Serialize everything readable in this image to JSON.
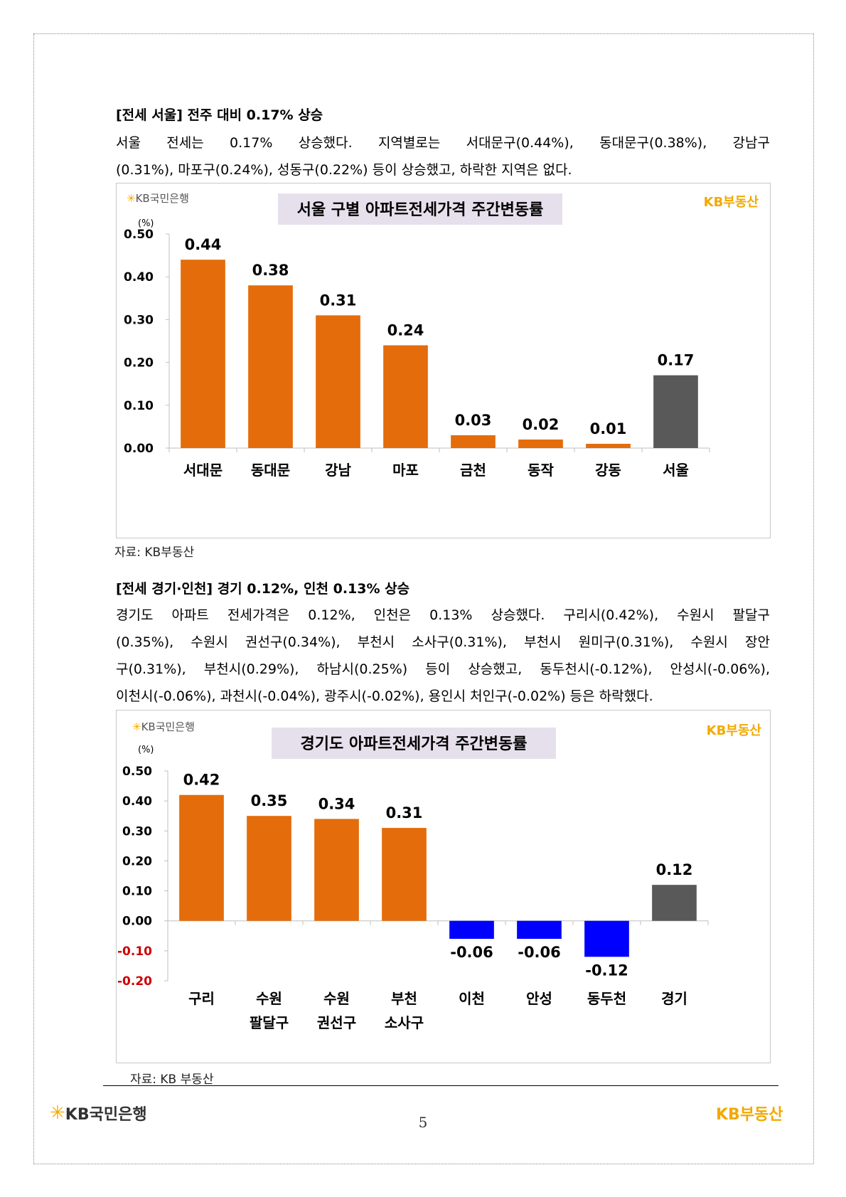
{
  "sections": [
    {
      "heading": "[전세 서울] 전주 대비 0.17% 상승",
      "lines": [
        "서울 전세는 0.17% 상승했다. 지역별로는 서대문구(0.44%), 동대문구(0.38%), 강남구",
        "(0.31%), 마포구(0.24%), 성동구(0.22%) 등이 상승했고, 하락한 지역은 없다."
      ]
    },
    {
      "heading": "[전세 경기·인천] 경기 0.12%, 인천 0.13% 상승",
      "lines": [
        "경기도 아파트 전세가격은 0.12%, 인천은 0.13% 상승했다. 구리시(0.42%), 수원시 팔달구",
        "(0.35%), 수원시 권선구(0.34%), 부천시 소사구(0.31%), 부천시 원미구(0.31%), 수원시 장안",
        "구(0.31%), 부천시(0.29%), 하남시(0.25%) 등이 상승했고, 동두천시(-0.12%), 안성시(-0.06%),",
        "이천시(-0.06%), 과천시(-0.04%), 광주시(-0.02%), 용인시 처인구(-0.02%) 등은 하락했다."
      ]
    }
  ],
  "chart_data": [
    {
      "type": "bar",
      "title": "서울 구별 아파트전세가격 주간변동률",
      "unit": "(%)",
      "categories": [
        [
          "서대문"
        ],
        [
          "동대문"
        ],
        [
          "강남"
        ],
        [
          "마포"
        ],
        [
          "금천"
        ],
        [
          "동작"
        ],
        [
          "강동"
        ],
        [
          "서울"
        ]
      ],
      "values": [
        0.44,
        0.38,
        0.31,
        0.24,
        0.03,
        0.02,
        0.01,
        0.17
      ],
      "value_labels": [
        "0.44",
        "0.38",
        "0.31",
        "0.24",
        "0.03",
        "0.02",
        "0.01",
        "0.17"
      ],
      "ylim": [
        0,
        0.5
      ],
      "yticks": [
        0.5,
        0.4,
        0.3,
        0.2,
        0.1,
        0.0
      ],
      "ytick_labels": [
        "0.50",
        "0.40",
        "0.30",
        "0.20",
        "0.10",
        "0.00"
      ],
      "colors": {
        "positive": "#e46c0a",
        "negative": "#0000ff",
        "total": "#595959",
        "title_bg": "#e6e0ec",
        "negative_tick": "#cc0000"
      },
      "source": "자료: KB부동산"
    },
    {
      "type": "bar",
      "title": "경기도 아파트전세가격 주간변동률",
      "unit": "(%)",
      "categories": [
        [
          "구리"
        ],
        [
          "수원",
          "팔달구"
        ],
        [
          "수원",
          "권선구"
        ],
        [
          "부천",
          "소사구"
        ],
        [
          "이천"
        ],
        [
          "안성"
        ],
        [
          "동두천"
        ],
        [
          "경기"
        ]
      ],
      "values": [
        0.42,
        0.35,
        0.34,
        0.31,
        -0.06,
        -0.06,
        -0.12,
        0.12
      ],
      "value_labels": [
        "0.42",
        "0.35",
        "0.34",
        "0.31",
        "-0.06",
        "-0.06",
        "-0.12",
        "0.12"
      ],
      "ylim": [
        -0.2,
        0.5
      ],
      "yticks": [
        0.5,
        0.4,
        0.3,
        0.2,
        0.1,
        0.0,
        -0.1,
        -0.2
      ],
      "ytick_labels": [
        "0.50",
        "0.40",
        "0.30",
        "0.20",
        "0.10",
        "0.00",
        "-0.10",
        "-0.20"
      ],
      "colors": {
        "positive": "#e46c0a",
        "negative": "#0000ff",
        "total": "#595959",
        "title_bg": "#e6e0ec",
        "negative_tick": "#cc0000"
      },
      "source": "자료: KB 부동산"
    }
  ],
  "logos": {
    "kb_bank": "KB국민은행",
    "kb_realestate": "KB부동산",
    "star_icon": "✳"
  },
  "page_number": "5"
}
